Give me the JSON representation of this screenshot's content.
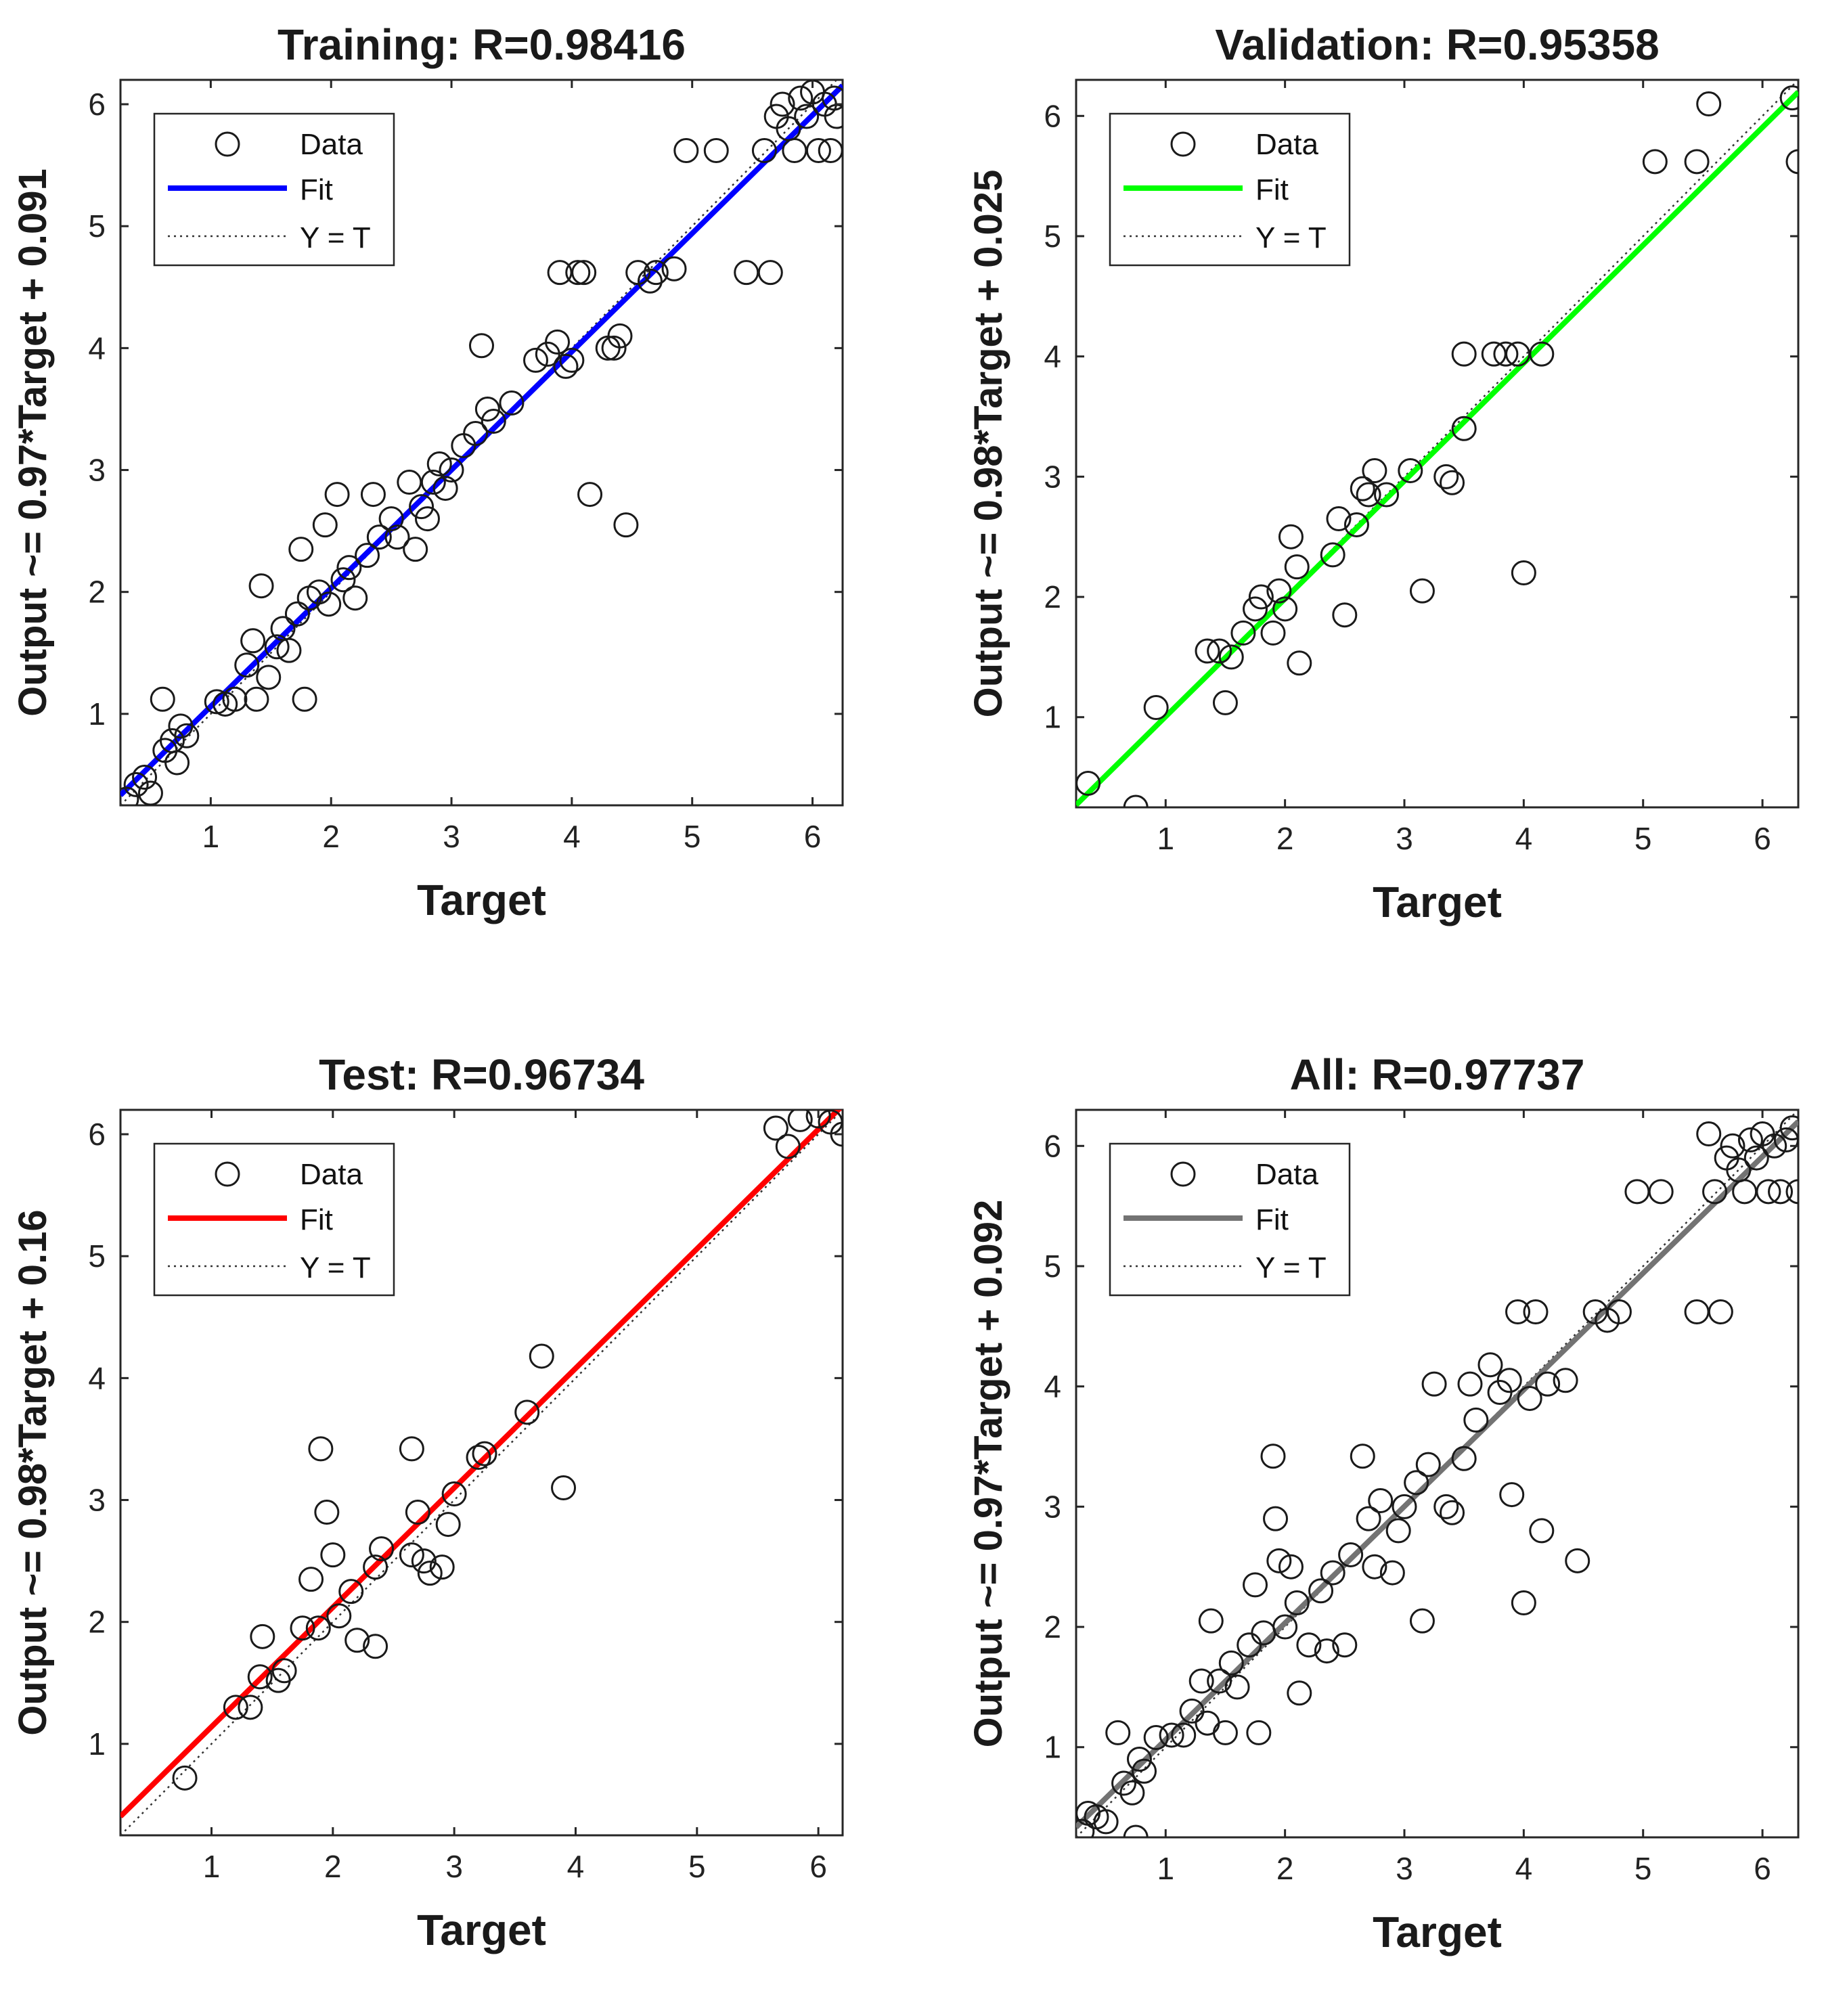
{
  "chart_data": [
    {
      "type": "scatter",
      "title": "Training: R=0.98416",
      "xlabel": "Target",
      "ylabel": "Output ~= 0.97*Target + 0.091",
      "xlim": [
        0.25,
        6.25
      ],
      "ylim": [
        0.25,
        6.2
      ],
      "xticks": [
        "1",
        "2",
        "3",
        "4",
        "5",
        "6"
      ],
      "yticks": [
        "1",
        "2",
        "3",
        "4",
        "5",
        "6"
      ],
      "fit": {
        "slope": 0.97,
        "intercept": 0.091,
        "color": "#0000ff"
      },
      "legend": {
        "position": "top-left",
        "entries": [
          "Data",
          "Fit",
          "Y = T"
        ]
      },
      "points": [
        [
          0.3,
          0.3
        ],
        [
          0.38,
          0.42
        ],
        [
          0.45,
          0.48
        ],
        [
          0.5,
          0.35
        ],
        [
          0.6,
          1.12
        ],
        [
          0.62,
          0.7
        ],
        [
          0.68,
          0.78
        ],
        [
          0.72,
          0.6
        ],
        [
          0.75,
          0.9
        ],
        [
          0.8,
          0.82
        ],
        [
          1.05,
          1.1
        ],
        [
          1.12,
          1.08
        ],
        [
          1.2,
          1.12
        ],
        [
          1.3,
          1.4
        ],
        [
          1.35,
          1.6
        ],
        [
          1.38,
          1.12
        ],
        [
          1.42,
          2.05
        ],
        [
          1.48,
          1.3
        ],
        [
          1.55,
          1.55
        ],
        [
          1.6,
          1.7
        ],
        [
          1.65,
          1.52
        ],
        [
          1.72,
          1.82
        ],
        [
          1.75,
          2.35
        ],
        [
          1.78,
          1.12
        ],
        [
          1.82,
          1.95
        ],
        [
          1.9,
          2.0
        ],
        [
          1.95,
          2.55
        ],
        [
          1.98,
          1.9
        ],
        [
          2.05,
          2.8
        ],
        [
          2.1,
          2.1
        ],
        [
          2.15,
          2.2
        ],
        [
          2.2,
          1.95
        ],
        [
          2.3,
          2.3
        ],
        [
          2.35,
          2.8
        ],
        [
          2.4,
          2.45
        ],
        [
          2.5,
          2.6
        ],
        [
          2.55,
          2.45
        ],
        [
          2.65,
          2.9
        ],
        [
          2.7,
          2.35
        ],
        [
          2.75,
          2.7
        ],
        [
          2.8,
          2.6
        ],
        [
          2.85,
          2.9
        ],
        [
          2.9,
          3.05
        ],
        [
          2.95,
          2.85
        ],
        [
          3.0,
          3.0
        ],
        [
          3.1,
          3.2
        ],
        [
          3.2,
          3.3
        ],
        [
          3.25,
          4.02
        ],
        [
          3.3,
          3.5
        ],
        [
          3.35,
          3.4
        ],
        [
          3.5,
          3.55
        ],
        [
          3.7,
          3.9
        ],
        [
          3.8,
          3.95
        ],
        [
          3.88,
          4.05
        ],
        [
          3.9,
          4.62
        ],
        [
          3.95,
          3.85
        ],
        [
          4.0,
          3.9
        ],
        [
          4.05,
          4.62
        ],
        [
          4.1,
          4.62
        ],
        [
          4.15,
          2.8
        ],
        [
          4.3,
          4.0
        ],
        [
          4.35,
          4.0
        ],
        [
          4.4,
          4.1
        ],
        [
          4.45,
          2.55
        ],
        [
          4.55,
          4.62
        ],
        [
          4.65,
          4.55
        ],
        [
          4.7,
          4.62
        ],
        [
          4.85,
          4.65
        ],
        [
          4.95,
          5.62
        ],
        [
          5.2,
          5.62
        ],
        [
          5.45,
          4.62
        ],
        [
          5.65,
          4.62
        ],
        [
          5.6,
          5.62
        ],
        [
          5.7,
          5.9
        ],
        [
          5.75,
          6.0
        ],
        [
          5.8,
          5.8
        ],
        [
          5.85,
          5.62
        ],
        [
          5.9,
          6.05
        ],
        [
          5.95,
          5.9
        ],
        [
          6.0,
          6.1
        ],
        [
          6.05,
          5.62
        ],
        [
          6.1,
          6.0
        ],
        [
          6.15,
          5.62
        ],
        [
          6.18,
          6.05
        ],
        [
          6.2,
          5.9
        ]
      ]
    },
    {
      "type": "scatter",
      "title": "Validation: R=0.95358",
      "xlabel": "Target",
      "ylabel": "Output ~= 0.98*Target + 0.025",
      "xlim": [
        0.25,
        6.3
      ],
      "ylim": [
        0.25,
        6.3
      ],
      "xticks": [
        "1",
        "2",
        "3",
        "4",
        "5",
        "6"
      ],
      "yticks": [
        "1",
        "2",
        "3",
        "4",
        "5",
        "6"
      ],
      "fit": {
        "slope": 0.98,
        "intercept": 0.025,
        "color": "#00ff00"
      },
      "legend": {
        "position": "top-left",
        "entries": [
          "Data",
          "Fit",
          "Y = T"
        ]
      },
      "points": [
        [
          0.35,
          0.45
        ],
        [
          0.75,
          0.25
        ],
        [
          0.92,
          1.08
        ],
        [
          1.35,
          1.55
        ],
        [
          1.45,
          1.55
        ],
        [
          1.5,
          1.12
        ],
        [
          1.55,
          1.5
        ],
        [
          1.65,
          1.7
        ],
        [
          1.75,
          1.9
        ],
        [
          1.8,
          2.0
        ],
        [
          1.9,
          1.7
        ],
        [
          1.95,
          2.05
        ],
        [
          2.0,
          1.9
        ],
        [
          2.05,
          2.5
        ],
        [
          2.1,
          2.25
        ],
        [
          2.12,
          1.45
        ],
        [
          2.4,
          2.35
        ],
        [
          2.45,
          2.65
        ],
        [
          2.5,
          1.85
        ],
        [
          2.6,
          2.6
        ],
        [
          2.65,
          2.9
        ],
        [
          2.7,
          2.85
        ],
        [
          2.75,
          3.05
        ],
        [
          2.85,
          2.85
        ],
        [
          3.05,
          3.05
        ],
        [
          3.15,
          2.05
        ],
        [
          3.35,
          3.0
        ],
        [
          3.4,
          2.95
        ],
        [
          3.5,
          3.4
        ],
        [
          3.5,
          4.02
        ],
        [
          3.75,
          4.02
        ],
        [
          3.85,
          4.02
        ],
        [
          3.95,
          4.02
        ],
        [
          4.0,
          2.2
        ],
        [
          4.15,
          4.02
        ],
        [
          5.1,
          5.62
        ],
        [
          5.45,
          5.62
        ],
        [
          5.55,
          6.1
        ],
        [
          6.25,
          6.15
        ],
        [
          6.3,
          5.62
        ]
      ]
    },
    {
      "type": "scatter",
      "title": "Test: R=0.96734",
      "xlabel": "Target",
      "ylabel": "Output ~= 0.98*Target + 0.16",
      "xlim": [
        0.25,
        6.2
      ],
      "ylim": [
        0.25,
        6.2
      ],
      "xticks": [
        "1",
        "2",
        "3",
        "4",
        "5",
        "6"
      ],
      "yticks": [
        "1",
        "2",
        "3",
        "4",
        "5",
        "6"
      ],
      "fit": {
        "slope": 0.98,
        "intercept": 0.16,
        "color": "#ff0000"
      },
      "legend": {
        "position": "top-left",
        "entries": [
          "Data",
          "Fit",
          "Y = T"
        ]
      },
      "points": [
        [
          0.78,
          0.72
        ],
        [
          1.2,
          1.3
        ],
        [
          1.32,
          1.3
        ],
        [
          1.4,
          1.55
        ],
        [
          1.42,
          1.88
        ],
        [
          1.55,
          1.52
        ],
        [
          1.6,
          1.6
        ],
        [
          1.75,
          1.95
        ],
        [
          1.82,
          2.35
        ],
        [
          1.88,
          1.95
        ],
        [
          1.9,
          3.42
        ],
        [
          1.95,
          2.9
        ],
        [
          2.0,
          2.55
        ],
        [
          2.05,
          2.05
        ],
        [
          2.15,
          2.25
        ],
        [
          2.2,
          1.85
        ],
        [
          2.35,
          1.8
        ],
        [
          2.35,
          2.45
        ],
        [
          2.4,
          2.6
        ],
        [
          2.65,
          3.42
        ],
        [
          2.65,
          2.55
        ],
        [
          2.7,
          2.9
        ],
        [
          2.75,
          2.5
        ],
        [
          2.8,
          2.4
        ],
        [
          2.9,
          2.45
        ],
        [
          2.95,
          2.8
        ],
        [
          3.0,
          3.05
        ],
        [
          3.2,
          3.35
        ],
        [
          3.25,
          3.38
        ],
        [
          3.6,
          3.72
        ],
        [
          3.72,
          4.18
        ],
        [
          3.9,
          3.1
        ],
        [
          5.65,
          6.05
        ],
        [
          5.75,
          5.9
        ],
        [
          5.85,
          6.12
        ],
        [
          6.0,
          6.15
        ],
        [
          6.1,
          6.1
        ],
        [
          6.2,
          6.0
        ]
      ]
    },
    {
      "type": "scatter",
      "title": "All: R=0.97737",
      "xlabel": "Target",
      "ylabel": "Output ~= 0.97*Target + 0.092",
      "xlim": [
        0.25,
        6.3
      ],
      "ylim": [
        0.25,
        6.3
      ],
      "xticks": [
        "1",
        "2",
        "3",
        "4",
        "5",
        "6"
      ],
      "yticks": [
        "1",
        "2",
        "3",
        "4",
        "5",
        "6"
      ],
      "fit": {
        "slope": 0.97,
        "intercept": 0.092,
        "color": "#737373"
      },
      "legend": {
        "position": "top-left",
        "entries": [
          "Data",
          "Fit",
          "Y = T"
        ]
      },
      "points": [
        [
          0.3,
          0.3
        ],
        [
          0.35,
          0.45
        ],
        [
          0.42,
          0.42
        ],
        [
          0.5,
          0.38
        ],
        [
          0.6,
          1.12
        ],
        [
          0.65,
          0.7
        ],
        [
          0.72,
          0.62
        ],
        [
          0.75,
          0.25
        ],
        [
          0.78,
          0.9
        ],
        [
          0.82,
          0.8
        ],
        [
          0.92,
          1.08
        ],
        [
          1.05,
          1.1
        ],
        [
          1.15,
          1.1
        ],
        [
          1.22,
          1.3
        ],
        [
          1.3,
          1.55
        ],
        [
          1.35,
          1.2
        ],
        [
          1.38,
          2.05
        ],
        [
          1.45,
          1.55
        ],
        [
          1.5,
          1.12
        ],
        [
          1.55,
          1.7
        ],
        [
          1.6,
          1.5
        ],
        [
          1.7,
          1.85
        ],
        [
          1.75,
          2.35
        ],
        [
          1.78,
          1.12
        ],
        [
          1.82,
          1.95
        ],
        [
          1.9,
          3.42
        ],
        [
          1.92,
          2.9
        ],
        [
          1.95,
          2.55
        ],
        [
          2.0,
          2.0
        ],
        [
          2.05,
          2.5
        ],
        [
          2.1,
          2.2
        ],
        [
          2.12,
          1.45
        ],
        [
          2.2,
          1.85
        ],
        [
          2.3,
          2.3
        ],
        [
          2.35,
          1.8
        ],
        [
          2.4,
          2.45
        ],
        [
          2.5,
          1.85
        ],
        [
          2.55,
          2.6
        ],
        [
          2.65,
          3.42
        ],
        [
          2.7,
          2.9
        ],
        [
          2.75,
          2.5
        ],
        [
          2.8,
          3.05
        ],
        [
          2.9,
          2.45
        ],
        [
          2.95,
          2.8
        ],
        [
          3.0,
          3.0
        ],
        [
          3.1,
          3.2
        ],
        [
          3.15,
          2.05
        ],
        [
          3.2,
          3.35
        ],
        [
          3.25,
          4.02
        ],
        [
          3.35,
          3.0
        ],
        [
          3.4,
          2.95
        ],
        [
          3.5,
          3.4
        ],
        [
          3.55,
          4.02
        ],
        [
          3.6,
          3.72
        ],
        [
          3.72,
          4.18
        ],
        [
          3.8,
          3.95
        ],
        [
          3.88,
          4.05
        ],
        [
          3.9,
          3.1
        ],
        [
          3.95,
          4.62
        ],
        [
          4.0,
          2.2
        ],
        [
          4.05,
          3.9
        ],
        [
          4.1,
          4.62
        ],
        [
          4.15,
          2.8
        ],
        [
          4.2,
          4.02
        ],
        [
          4.35,
          4.05
        ],
        [
          4.45,
          2.55
        ],
        [
          4.6,
          4.62
        ],
        [
          4.7,
          4.55
        ],
        [
          4.8,
          4.62
        ],
        [
          4.95,
          5.62
        ],
        [
          5.15,
          5.62
        ],
        [
          5.45,
          4.62
        ],
        [
          5.65,
          4.62
        ],
        [
          5.6,
          5.62
        ],
        [
          5.55,
          6.1
        ],
        [
          5.7,
          5.9
        ],
        [
          5.75,
          6.0
        ],
        [
          5.8,
          5.8
        ],
        [
          5.85,
          5.62
        ],
        [
          5.9,
          6.05
        ],
        [
          5.95,
          5.9
        ],
        [
          6.0,
          6.1
        ],
        [
          6.05,
          5.62
        ],
        [
          6.1,
          6.0
        ],
        [
          6.15,
          5.62
        ],
        [
          6.2,
          6.05
        ],
        [
          6.25,
          6.15
        ],
        [
          6.3,
          5.62
        ]
      ]
    }
  ]
}
